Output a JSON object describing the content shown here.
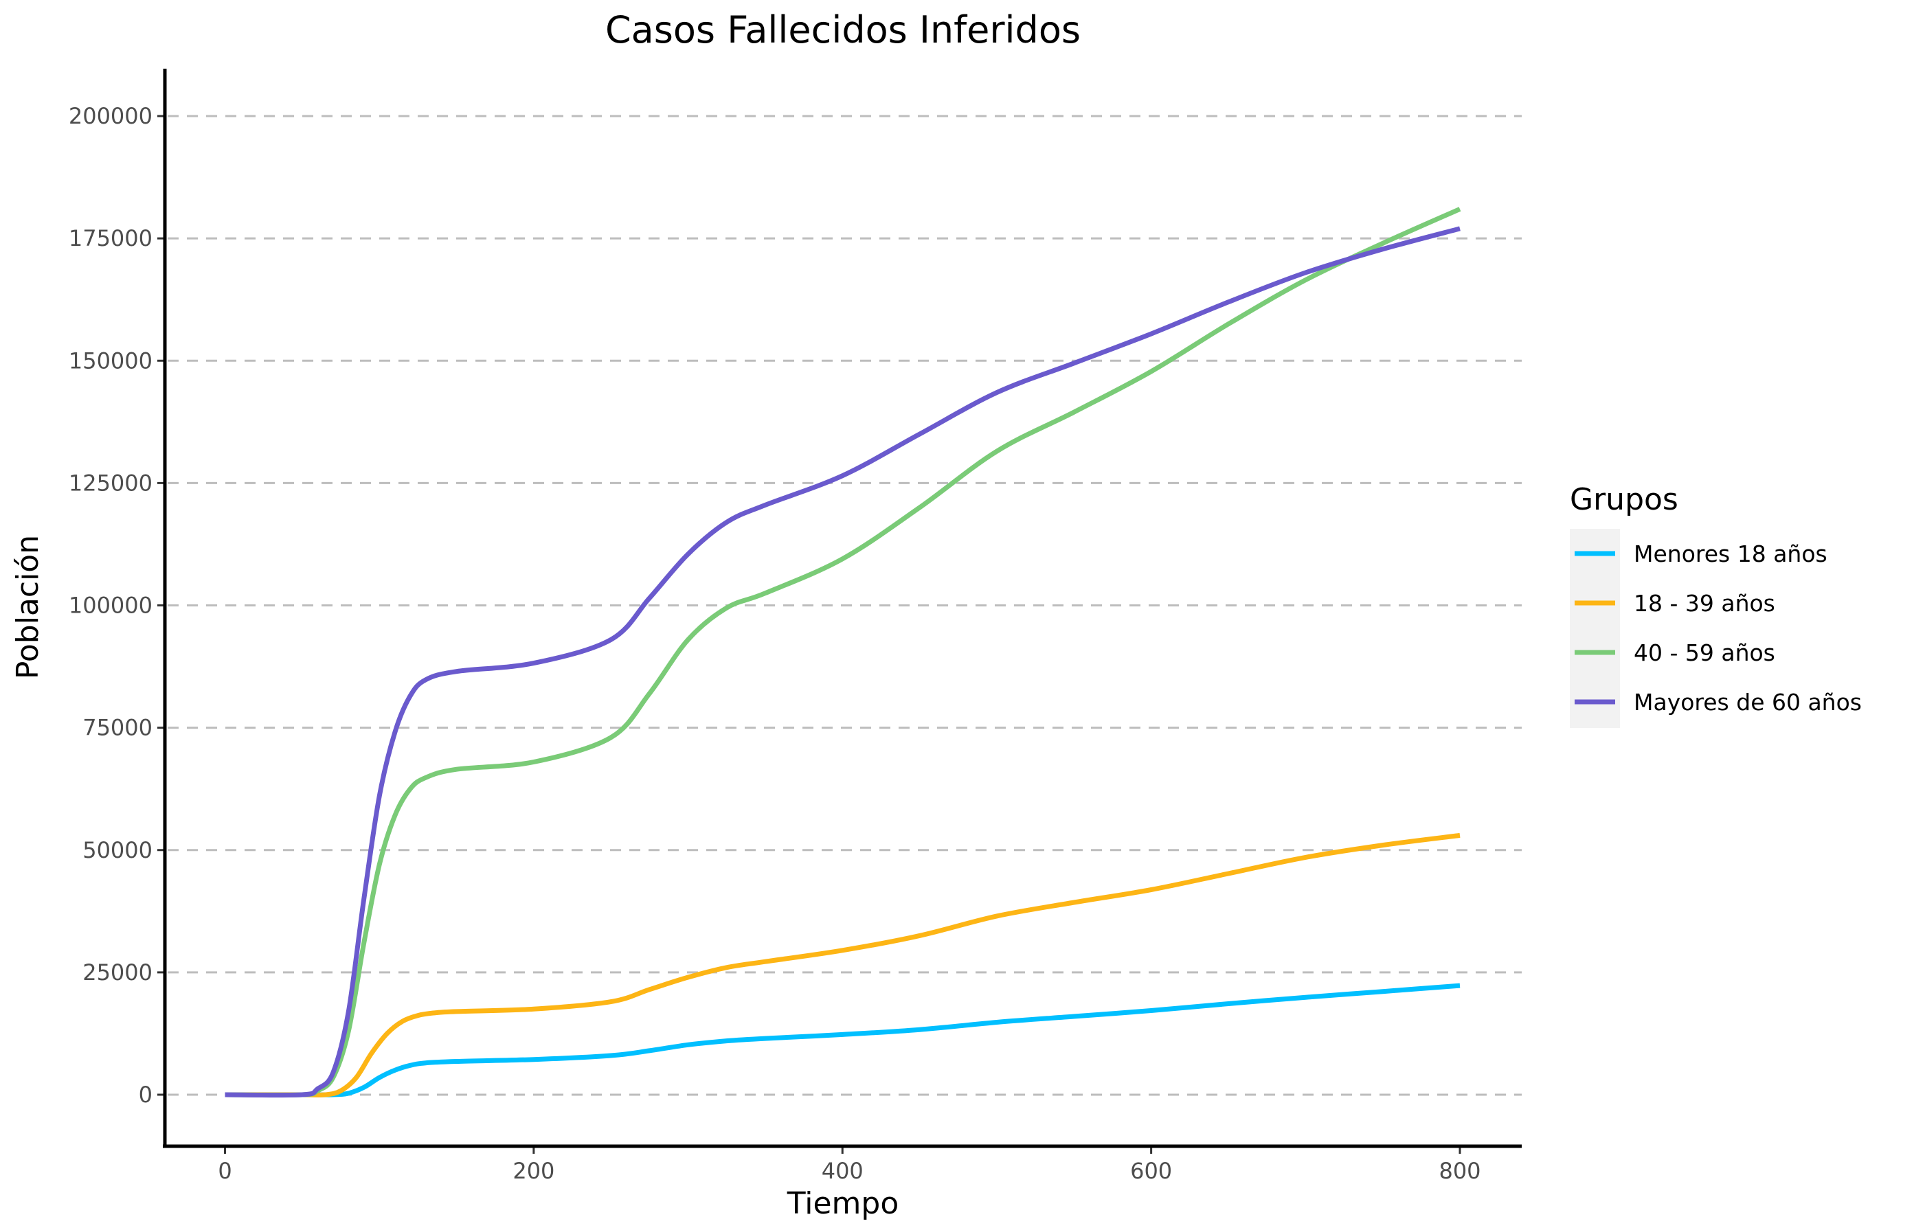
{
  "chart_data": {
    "type": "line",
    "title": "Casos Fallecidos Inferidos",
    "xlabel": "Tiempo",
    "ylabel": "Población",
    "xlim": [
      -40,
      840
    ],
    "ylim": [
      -10000,
      210000
    ],
    "x_ticks": [
      0,
      200,
      400,
      600,
      800
    ],
    "x_tick_labels": [
      "0",
      "200",
      "400",
      "600",
      "800"
    ],
    "y_ticks": [
      0,
      25000,
      50000,
      75000,
      100000,
      125000,
      150000,
      175000,
      200000
    ],
    "y_tick_labels": [
      "0",
      "25000",
      "50000",
      "75000",
      "100000",
      "125000",
      "150000",
      "175000",
      "200000"
    ],
    "grid": "horizontal-dashed",
    "legend": {
      "title": "Grupos",
      "position": "right"
    },
    "series": [
      {
        "name": "Menores 18 años",
        "color": "#00BFFF",
        "x": [
          0,
          50,
          70,
          80,
          90,
          100,
          110,
          120,
          130,
          150,
          200,
          250,
          275,
          300,
          325,
          350,
          400,
          450,
          500,
          550,
          600,
          650,
          700,
          750,
          800
        ],
        "y": [
          0,
          0,
          0,
          300,
          1500,
          3500,
          5000,
          6000,
          6500,
          6800,
          7200,
          8000,
          9000,
          10200,
          11000,
          11500,
          12300,
          13300,
          14800,
          16000,
          17200,
          18600,
          19900,
          21100,
          22300
        ]
      },
      {
        "name": "18 - 39 años",
        "color": "#FDB515",
        "x": [
          0,
          50,
          65,
          75,
          85,
          95,
          105,
          115,
          125,
          135,
          150,
          200,
          250,
          275,
          300,
          325,
          350,
          400,
          450,
          500,
          550,
          600,
          650,
          700,
          750,
          800
        ],
        "y": [
          0,
          0,
          0,
          800,
          3500,
          8500,
          12500,
          15000,
          16200,
          16700,
          17000,
          17500,
          19000,
          21500,
          24000,
          26000,
          27200,
          29500,
          32500,
          36500,
          39300,
          41900,
          45200,
          48500,
          51000,
          53000
        ]
      },
      {
        "name": "40 - 59 años",
        "color": "#7ACB77",
        "x": [
          0,
          50,
          60,
          70,
          80,
          90,
          100,
          110,
          120,
          130,
          150,
          200,
          250,
          275,
          300,
          325,
          350,
          400,
          450,
          500,
          550,
          600,
          650,
          700,
          750,
          800
        ],
        "y": [
          0,
          0,
          800,
          3500,
          13000,
          31000,
          47000,
          57000,
          62500,
          64800,
          66500,
          68000,
          73000,
          82000,
          93000,
          99500,
          102500,
          109500,
          120000,
          131500,
          139500,
          147800,
          157500,
          166500,
          174000,
          181000
        ]
      },
      {
        "name": "Mayores de 60 años",
        "color": "#6A5ACD",
        "x": [
          0,
          50,
          60,
          70,
          80,
          90,
          100,
          110,
          120,
          130,
          150,
          200,
          250,
          275,
          300,
          325,
          350,
          400,
          450,
          500,
          550,
          600,
          650,
          700,
          750,
          800
        ],
        "y": [
          0,
          0,
          1200,
          4500,
          17000,
          40000,
          61000,
          74000,
          81500,
          84800,
          86500,
          88200,
          93000,
          101500,
          110500,
          117000,
          120500,
          126500,
          135000,
          143500,
          149500,
          155500,
          162000,
          168000,
          172800,
          177000
        ]
      }
    ]
  }
}
